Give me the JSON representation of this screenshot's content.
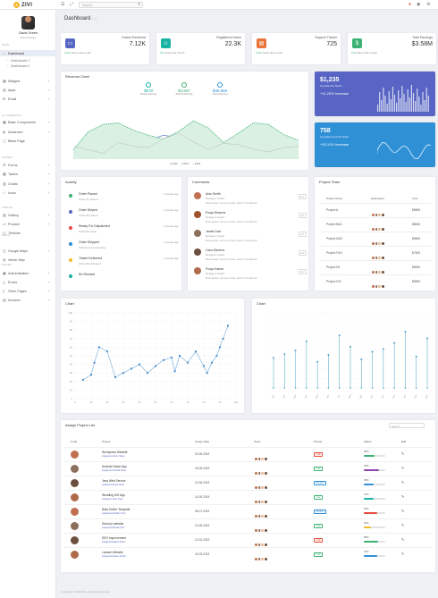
{
  "brand": "ZIVI",
  "search": {
    "placeholder": "Search"
  },
  "profile": {
    "name": "David Green",
    "role": "Administrator"
  },
  "sidebar": {
    "heads": [
      "MAIN",
      "UI ELEMENTS",
      "FORMS",
      "TABLES",
      "MAPS",
      "PAGES"
    ],
    "items": [
      {
        "label": "Dashboard",
        "icon": "home-icon",
        "active": true
      },
      {
        "label": "Dashboard 1",
        "sub": true
      },
      {
        "label": "Dashboard 2",
        "sub": true
      },
      {
        "label": "Widgets",
        "icon": "widget-icon"
      },
      {
        "label": "Apps",
        "icon": "apps-icon"
      },
      {
        "label": "Email",
        "icon": "mail-icon"
      },
      {
        "label": "Basic Components",
        "icon": "box-icon"
      },
      {
        "label": "Advanced",
        "icon": "layers-icon"
      },
      {
        "label": "Blank Page",
        "icon": "page-icon"
      },
      {
        "label": "Forms",
        "icon": "form-icon"
      },
      {
        "label": "Tables",
        "icon": "table-icon"
      },
      {
        "label": "Charts",
        "icon": "chart-icon"
      },
      {
        "label": "Icons",
        "icon": "star-icon"
      },
      {
        "label": "Gallery",
        "icon": "image-icon"
      },
      {
        "label": "Product",
        "icon": "bag-icon"
      },
      {
        "label": "Timeline",
        "icon": "clock-icon"
      },
      {
        "label": "Google Maps",
        "icon": "map-icon"
      },
      {
        "label": "Vector Map",
        "icon": "pin-icon"
      },
      {
        "label": "Authentication",
        "icon": "lock-icon"
      },
      {
        "label": "Errors",
        "icon": "warning-icon"
      },
      {
        "label": "Other Pages",
        "icon": "file-icon"
      },
      {
        "label": "Invoices",
        "icon": "invoice-icon"
      }
    ]
  },
  "breadcrumb": {
    "title": "Dashboard",
    "home": "⌂"
  },
  "stats": [
    {
      "label": "Orders Received",
      "value": "7.12K",
      "icon": "cart-icon",
      "color": "#5867c3",
      "foot_pct": "2.5%",
      "foot": "Since last month"
    },
    {
      "label": "Registered Users",
      "value": "22.3K",
      "icon": "users-icon",
      "color": "#17b3a3",
      "foot_pct": "4%",
      "foot": "Since last month"
    },
    {
      "label": "Support Tickets",
      "value": "725",
      "icon": "ticket-icon",
      "color": "#e8743b",
      "foot_pct": "1.5%",
      "foot": "Since last month"
    },
    {
      "label": "Total Earnings",
      "value": "$3.58M",
      "icon": "dollar-icon",
      "color": "#3bb273",
      "foot_pct": "12%",
      "foot": "Since last month"
    }
  ],
  "revenue": {
    "title": "Revenue Chart",
    "kpis": [
      {
        "value": "$678",
        "label": "Weekly Earning"
      },
      {
        "value": "$3,587",
        "label": "Monthly Earning"
      },
      {
        "value": "$45,965",
        "label": "Yearly Earning"
      }
    ],
    "legend": [
      "2016",
      "2017",
      "2018"
    ]
  },
  "promo": [
    {
      "value": "$1,235",
      "label": "Avg Sales Per Month",
      "change": "+11.20% Increase",
      "color": "#5865c4"
    },
    {
      "value": "758",
      "label": "Avg Sales Count Per Month",
      "change": "+15.11% Increase",
      "color": "#2f90d6"
    }
  ],
  "activity": {
    "title": "Activity",
    "items": [
      {
        "title": "Order Placed",
        "sub": "Order #1 placed",
        "time": "2 weeks ago",
        "color": "#3bb273"
      },
      {
        "title": "Order Shiped",
        "sub": "Order #2 shiped",
        "time": "2 weeks ago",
        "color": "#5867c3"
      },
      {
        "title": "Ready For Dispatched",
        "sub": "Order #3 ready",
        "time": "2 weeks ago",
        "color": "#e84b3b"
      },
      {
        "title": "Order Shipped",
        "sub": "Shipping is processing",
        "time": "2 weeks ago",
        "color": "#2f90d6"
      },
      {
        "title": "Tinkeri Delivered",
        "sub": "Order #5 delivered",
        "time": "2 weeks ago",
        "color": "#f5b82e"
      },
      {
        "title": "Re Revised",
        "sub": "",
        "time": "",
        "color": "#17b3a3"
      }
    ]
  },
  "comments": {
    "title": "Comments",
    "items": [
      {
        "name": "Anis Smith",
        "meta": "Designer Award",
        "text": "Duis autem vel eum iriure dolor in hendrerit",
        "color": "#c07050"
      },
      {
        "name": "Pooja Sharma",
        "meta": "Designer Award",
        "text": "Duis autem vel eum iriure dolor in hendrerit",
        "color": "#a0522d"
      },
      {
        "name": "Jamie Davi",
        "meta": "Designer Award",
        "text": "Duis autem vel eum iriure dolor in hendrerit",
        "color": "#8b6f5a"
      },
      {
        "name": "Cara Stevens",
        "meta": "Designer Award",
        "text": "Duis autem vel eum iriure dolor in hendrerit",
        "color": "#6b4e3d"
      },
      {
        "name": "Pooja Hanbe",
        "meta": "Designer Award",
        "text": "Duis autem vel eum iriure dolor in hendrerit",
        "color": "#b06a4a"
      }
    ]
  },
  "project_team": {
    "title": "Project Team",
    "headers": [
      "Project Name",
      "Employees",
      "Cost"
    ],
    "rows": [
      {
        "name": "Project A",
        "cost": "$5800"
      },
      {
        "name": "Project B&C",
        "cost": "$5600"
      },
      {
        "name": "Project D&E",
        "cost": "$5800"
      },
      {
        "name": "Project F&G",
        "cost": "$7800"
      },
      {
        "name": "Project D2",
        "cost": "$6600"
      },
      {
        "name": "Project G%",
        "cost": "$5800"
      }
    ]
  },
  "scatter_title": "Chart",
  "line2_title": "Chart",
  "chart_data": [
    {
      "type": "line",
      "title": "Revenue Chart",
      "categories": [
        "Jan",
        "Feb",
        "Mar",
        "Apr",
        "May",
        "Jun",
        "Jul",
        "Aug",
        "Sep",
        "Oct",
        "Nov",
        "Dec",
        "Jan",
        "Feb",
        "Mar",
        "Apr"
      ],
      "series": [
        {
          "name": "2016",
          "values": [
            30,
            45,
            55,
            50,
            58,
            48,
            55,
            52,
            48,
            42,
            40,
            45,
            50,
            46,
            44,
            40
          ]
        },
        {
          "name": "2017",
          "values": [
            35,
            60,
            70,
            72,
            62,
            55,
            50,
            60,
            75,
            65,
            45,
            58,
            72,
            70,
            56,
            48
          ]
        },
        {
          "name": "2018",
          "values": [
            40,
            35,
            30,
            45,
            40,
            38,
            50,
            58,
            46,
            35,
            44,
            42,
            36,
            32,
            38,
            40
          ]
        }
      ]
    },
    {
      "type": "scatter",
      "title": "Chart",
      "xlim": [
        0,
        100
      ],
      "ylim": [
        0,
        100
      ],
      "x": [
        5,
        10,
        12,
        15,
        20,
        25,
        30,
        35,
        40,
        45,
        50,
        55,
        60,
        62,
        65,
        70,
        75,
        80,
        82,
        85,
        88,
        90,
        92,
        95
      ],
      "y": [
        22,
        28,
        42,
        60,
        55,
        25,
        30,
        35,
        40,
        30,
        38,
        45,
        48,
        32,
        50,
        42,
        55,
        38,
        30,
        42,
        50,
        60,
        70,
        85
      ]
    },
    {
      "type": "bar",
      "title": "Chart",
      "categories": [
        "Jan",
        "Feb",
        "Mar",
        "Apr",
        "May",
        "Jun",
        "Jul",
        "Aug",
        "Sep",
        "Oct",
        "Nov",
        "Dec",
        "Jan",
        "Feb",
        "Mar"
      ],
      "values": [
        40,
        45,
        50,
        62,
        35,
        44,
        70,
        55,
        38,
        48,
        52,
        60,
        75,
        42,
        66
      ]
    }
  ],
  "assign": {
    "title": "Assign Project List",
    "search": "Search",
    "headers": [
      "Code",
      "Project",
      "Assign Date",
      "Team",
      "Priority",
      "Status",
      "Edit"
    ],
    "rows": [
      {
        "project": "Wordpress Website",
        "sub": "Assigned Admin Team",
        "date": "20-05-2019",
        "priority": "High",
        "pcolor": "#e84b3b",
        "pct": "50%",
        "scolor": "#3bb273",
        "val": 0.5
      },
      {
        "project": "Android Game App",
        "sub": "Assigned Android Team",
        "date": "16-05-2019",
        "priority": "Low",
        "pcolor": "#3bb273",
        "pct": "70%",
        "scolor": "#8e44ad",
        "val": 0.7
      },
      {
        "project": "Java Web Service",
        "sub": "Assigned Alexis Team",
        "date": "12-06-2019",
        "priority": "Medium",
        "pcolor": "#2f90d6",
        "pct": "45%",
        "scolor": "#2f90d6",
        "val": 0.45
      },
      {
        "project": "Wedding iOS App",
        "sub": "Assigned Jane Cass",
        "date": "14-05-2019",
        "priority": "Low",
        "pcolor": "#3bb273",
        "pct": "47%",
        "scolor": "#17b3a3",
        "val": 0.47
      },
      {
        "project": "Bata Online Template",
        "sub": "Assigned Infotiler Corp",
        "date": "08-07-2019",
        "priority": "Medium",
        "pcolor": "#2f90d6",
        "pct": "61%",
        "scolor": "#e84b3b",
        "val": 0.61
      },
      {
        "project": "Stand pi website",
        "sub": "Assigned Meniac Dev",
        "date": "12-06-2019",
        "priority": "Low",
        "pcolor": "#3bb273",
        "pct": "32%",
        "scolor": "#f5b82e",
        "val": 0.32
      },
      {
        "project": "SEO Improvement",
        "sub": "Assigned Adams Team",
        "date": "13-02-2019",
        "priority": "High",
        "pcolor": "#e84b3b",
        "pct": "68%",
        "scolor": "#3bb273",
        "val": 0.68
      },
      {
        "project": "Laravel Website",
        "sub": "Assigned Adams Smith",
        "date": "15-03-2019",
        "priority": "Low",
        "pcolor": "#3bb273",
        "pct": "61%",
        "scolor": "#2f90d6",
        "val": 0.61
      }
    ]
  },
  "footer": "Copyright © 2019 Zivi. All rights reserved."
}
